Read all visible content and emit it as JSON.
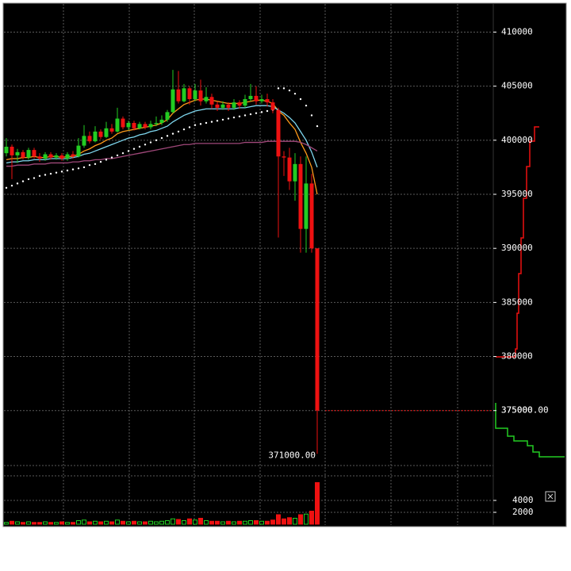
{
  "chart_data": {
    "type": "candlestick",
    "up_color": "#22cc22",
    "down_color": "#ee1111",
    "grid": true,
    "ylim": [
      369700,
      412600
    ],
    "yticks": [
      410000,
      405000,
      400000,
      395000,
      390000,
      385000,
      380000,
      375000
    ],
    "last_price": {
      "value": 375000,
      "label": "375000.00"
    },
    "low_price": {
      "value": 371000,
      "label": "371000.00"
    },
    "open": [
      398800,
      399400,
      398600,
      398900,
      398400,
      399100,
      398500,
      398300,
      398700,
      398400,
      398600,
      398300,
      398700,
      398500,
      399500,
      400400,
      399900,
      400800,
      400300,
      401100,
      400800,
      402000,
      401200,
      401600,
      401100,
      401500,
      401200,
      401500,
      401600,
      401900,
      402600,
      404700,
      403600,
      404800,
      403800,
      404600,
      403600,
      404000,
      403300,
      403000,
      403300,
      403000,
      403500,
      403200,
      403800,
      404100,
      403600,
      403800,
      403500,
      402800,
      398500,
      398400,
      396200,
      397800,
      391800,
      396000,
      390000
    ],
    "high": [
      400200,
      399600,
      399200,
      399100,
      399300,
      399300,
      398800,
      398900,
      398900,
      398800,
      398800,
      398900,
      399000,
      400200,
      401400,
      400800,
      401300,
      401000,
      401700,
      401500,
      403000,
      402200,
      401800,
      401800,
      401700,
      401700,
      401800,
      402200,
      402300,
      402800,
      406500,
      406400,
      405200,
      405000,
      405200,
      405600,
      404900,
      404300,
      403600,
      403600,
      403500,
      403800,
      403700,
      404200,
      405200,
      405000,
      404200,
      404300,
      403800,
      403000,
      399000,
      399300,
      398800,
      398500,
      398500,
      396900,
      390000
    ],
    "low": [
      398500,
      396400,
      397900,
      398200,
      398200,
      398300,
      398000,
      398100,
      398200,
      398200,
      398100,
      398100,
      398300,
      398400,
      399300,
      399700,
      399800,
      400100,
      400200,
      400600,
      400700,
      401000,
      400900,
      400900,
      401000,
      401000,
      401000,
      401300,
      401400,
      401700,
      402500,
      403400,
      403500,
      403300,
      403600,
      403200,
      403400,
      402900,
      402700,
      402800,
      402700,
      402800,
      402900,
      403000,
      403600,
      403300,
      403400,
      403100,
      402500,
      391000,
      396700,
      395400,
      394400,
      389600,
      389600,
      389600,
      371000
    ],
    "close": [
      399400,
      398600,
      398900,
      398400,
      399100,
      398500,
      398300,
      398700,
      398400,
      398600,
      398300,
      398700,
      398500,
      399500,
      400400,
      399900,
      400800,
      400300,
      401100,
      400800,
      402000,
      401200,
      401600,
      401100,
      401500,
      401200,
      401500,
      401600,
      401900,
      402600,
      404700,
      403600,
      404800,
      403800,
      404600,
      403600,
      404000,
      403300,
      403000,
      403300,
      403000,
      403500,
      403200,
      403800,
      404100,
      403600,
      403800,
      403500,
      402800,
      398500,
      398400,
      396200,
      397800,
      391800,
      396000,
      390000,
      375000
    ],
    "series": [
      {
        "color": "#ff9a1a",
        "values": [
          398200,
          398300,
          398300,
          398400,
          398400,
          398500,
          398400,
          398400,
          398500,
          398500,
          398400,
          398500,
          398500,
          398700,
          399000,
          399200,
          399500,
          399700,
          400000,
          400200,
          400600,
          400800,
          400900,
          401000,
          401100,
          401200,
          401300,
          401400,
          401600,
          401900,
          402500,
          402900,
          403300,
          403500,
          403700,
          403800,
          403800,
          403700,
          403600,
          403500,
          403400,
          403400,
          403400,
          403500,
          403600,
          403700,
          403700,
          403600,
          403400,
          402700,
          402300,
          401600,
          401000,
          399800,
          398800,
          397500,
          395000
        ]
      },
      {
        "color": "#7fd8f0",
        "values": [
          397900,
          398000,
          398000,
          398100,
          398100,
          398200,
          398200,
          398200,
          398300,
          398300,
          398300,
          398300,
          398400,
          398500,
          398700,
          398800,
          399000,
          399200,
          399400,
          399600,
          399800,
          400000,
          400200,
          400300,
          400500,
          400600,
          400800,
          400900,
          401100,
          401300,
          401700,
          402000,
          402300,
          402500,
          402700,
          402800,
          402900,
          402900,
          402900,
          402900,
          402900,
          402900,
          403000,
          403000,
          403100,
          403200,
          403200,
          403200,
          403100,
          402800,
          402500,
          402100,
          401600,
          400800,
          400000,
          398900,
          397500
        ]
      },
      {
        "color": "#a0487a",
        "values": [
          397600,
          397600,
          397700,
          397700,
          397700,
          397800,
          397800,
          397800,
          397900,
          397900,
          397900,
          397900,
          398000,
          398000,
          398100,
          398100,
          398200,
          398200,
          398300,
          398300,
          398400,
          398500,
          398600,
          398700,
          398800,
          398900,
          399000,
          399100,
          399200,
          399300,
          399400,
          399500,
          399600,
          399600,
          399700,
          399700,
          399700,
          399700,
          399700,
          399700,
          399700,
          399700,
          399700,
          399800,
          399800,
          399800,
          399800,
          399900,
          399900,
          399900,
          399900,
          399900,
          399900,
          399800,
          399600,
          399300,
          399000
        ]
      }
    ],
    "sar": {
      "color": "#ffffff",
      "values": [
        395600,
        395800,
        396000,
        396200,
        396400,
        396500,
        396700,
        396800,
        396900,
        397000,
        397100,
        397200,
        397300,
        397400,
        397500,
        397700,
        397800,
        398000,
        398200,
        398400,
        398600,
        398800,
        399000,
        399200,
        399400,
        399600,
        399800,
        400000,
        400200,
        400400,
        400600,
        400800,
        401000,
        401200,
        401400,
        401500,
        401600,
        401700,
        401800,
        401900,
        402000,
        402100,
        402200,
        402300,
        402400,
        402500,
        402600,
        402700,
        402800,
        404800,
        404800,
        404600,
        404300,
        403800,
        403200,
        402300,
        401300
      ]
    },
    "volume": {
      "ylim": [
        0,
        7070
      ],
      "yticks": [
        4000,
        2000
      ],
      "values": [
        300,
        500,
        400,
        300,
        400,
        300,
        300,
        400,
        300,
        300,
        400,
        300,
        300,
        600,
        700,
        400,
        500,
        400,
        500,
        400,
        700,
        500,
        400,
        500,
        400,
        400,
        500,
        400,
        500,
        600,
        900,
        800,
        600,
        900,
        700,
        1000,
        600,
        500,
        500,
        400,
        500,
        400,
        500,
        500,
        600,
        600,
        500,
        500,
        700,
        1600,
        900,
        1100,
        1000,
        1600,
        1700,
        2200,
        7000
      ]
    }
  }
}
